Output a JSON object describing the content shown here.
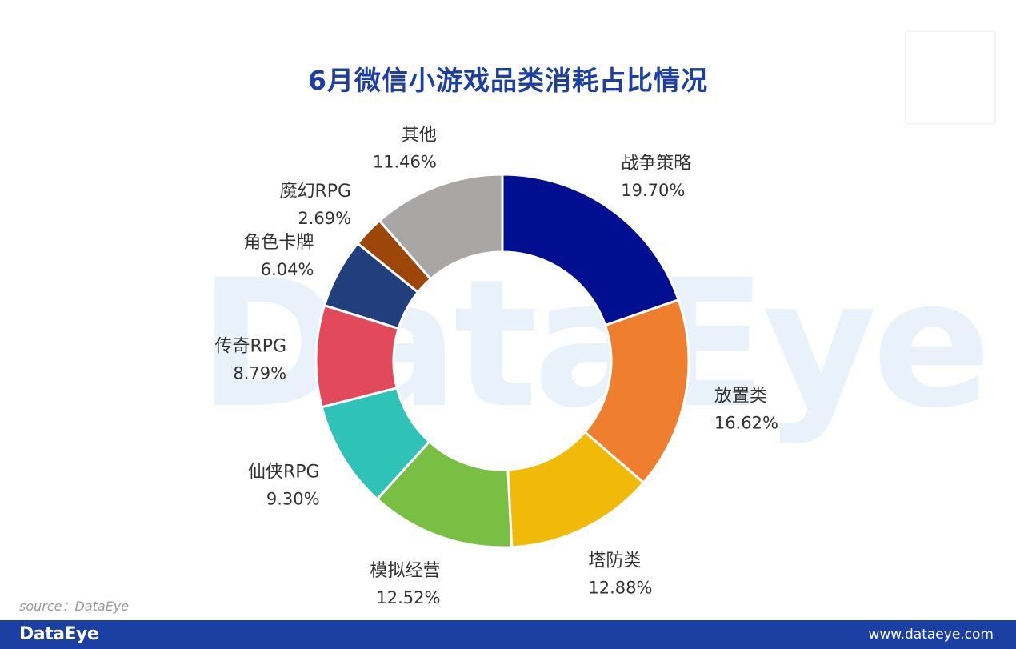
{
  "chart_data": {
    "type": "pie",
    "title": "6月微信小游戏品类消耗占比情况",
    "donut": true,
    "slices": [
      {
        "label": "战争策略",
        "value": 19.7,
        "value_label": "19.70%",
        "color": "#000f90"
      },
      {
        "label": "放置类",
        "value": 16.62,
        "value_label": "16.62%",
        "color": "#ef7f2e"
      },
      {
        "label": "塔防类",
        "value": 12.88,
        "value_label": "12.88%",
        "color": "#f1b908"
      },
      {
        "label": "模拟经营",
        "value": 12.52,
        "value_label": "12.52%",
        "color": "#78bf43"
      },
      {
        "label": "仙侠RPG",
        "value": 9.3,
        "value_label": "9.30%",
        "color": "#2fc2b7"
      },
      {
        "label": "传奇RPG",
        "value": 8.79,
        "value_label": "8.79%",
        "color": "#e24a5c"
      },
      {
        "label": "角色卡牌",
        "value": 6.04,
        "value_label": "6.04%",
        "color": "#223f7d"
      },
      {
        "label": "魔幻RPG",
        "value": 2.69,
        "value_label": "2.69%",
        "color": "#9c4709"
      },
      {
        "label": "其他",
        "value": 11.46,
        "value_label": "11.46%",
        "color": "#a9a6a6"
      }
    ]
  },
  "watermark": "DataEye",
  "source": "source：DataEye",
  "footer": {
    "logo": "DataEye",
    "url": "www.dataeye.com"
  }
}
